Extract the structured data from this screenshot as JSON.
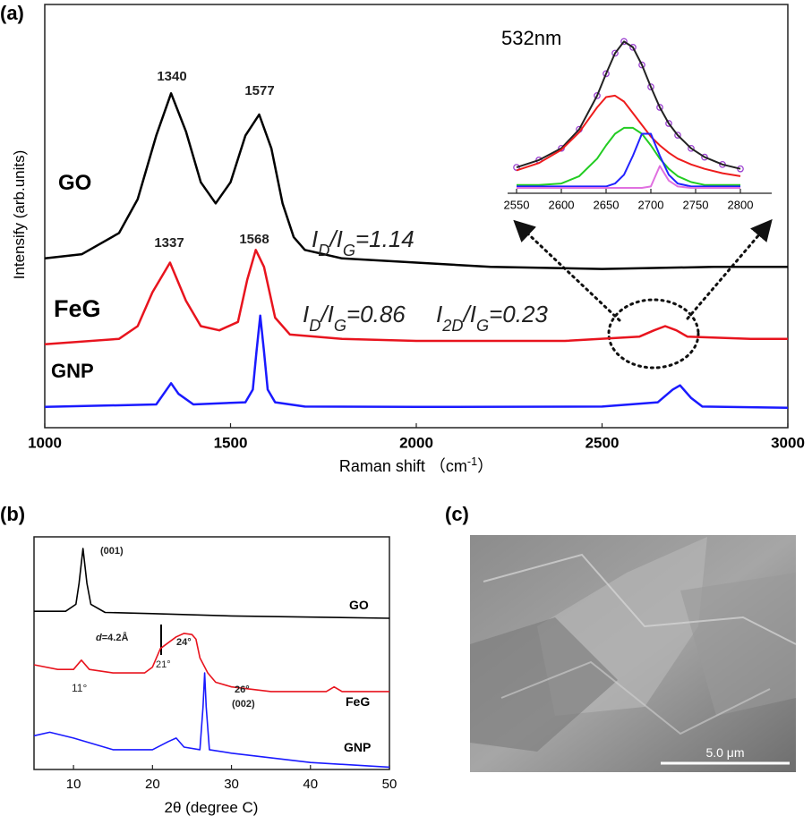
{
  "panels": [
    "(a)",
    "(b)",
    "(c)"
  ],
  "sem": {
    "scale_bar": "5.0 μm"
  },
  "chart_data": [
    {
      "type": "line",
      "y_label": "Intensify (arb.units)",
      "x_label": [
        {
          "text": "Raman shift （cm"
        },
        {
          "text": "-1",
          "sup": true
        },
        {
          "text": "）"
        }
      ],
      "xlim": [
        1000,
        3000
      ],
      "xticks": [
        1000,
        1500,
        2000,
        2500,
        3000
      ],
      "ylim": [
        0,
        10
      ],
      "series": [
        {
          "name": "GO",
          "color": "#000000",
          "x": [
            1000,
            1100,
            1200,
            1250,
            1300,
            1340,
            1380,
            1420,
            1460,
            1500,
            1540,
            1577,
            1610,
            1640,
            1670,
            1700,
            1800,
            2000,
            2200,
            2500,
            2800,
            3000
          ],
          "values": [
            4.0,
            4.1,
            4.6,
            5.4,
            6.9,
            7.9,
            7.0,
            5.8,
            5.3,
            5.8,
            6.9,
            7.4,
            6.6,
            5.3,
            4.5,
            4.2,
            4.0,
            3.9,
            3.8,
            3.75,
            3.8,
            3.8
          ]
        },
        {
          "name": "FeG",
          "color": "#e8141e",
          "x": [
            1000,
            1200,
            1250,
            1290,
            1337,
            1380,
            1420,
            1470,
            1520,
            1545,
            1568,
            1590,
            1620,
            1660,
            1800,
            2000,
            2400,
            2600,
            2640,
            2670,
            2700,
            2730,
            2900,
            3000
          ],
          "values": [
            1.97,
            2.1,
            2.4,
            3.2,
            3.9,
            3.0,
            2.4,
            2.3,
            2.5,
            3.5,
            4.2,
            3.8,
            2.6,
            2.2,
            2.1,
            2.05,
            2.05,
            2.15,
            2.3,
            2.4,
            2.3,
            2.15,
            2.1,
            2.1
          ]
        },
        {
          "name": "GNP",
          "color": "#1a1aff",
          "x": [
            1000,
            1300,
            1320,
            1340,
            1360,
            1400,
            1540,
            1560,
            1570,
            1580,
            1590,
            1600,
            1620,
            1700,
            2000,
            2500,
            2650,
            2690,
            2710,
            2740,
            2770,
            3000
          ],
          "values": [
            0.49,
            0.55,
            0.8,
            1.05,
            0.8,
            0.55,
            0.6,
            0.9,
            1.8,
            2.65,
            1.8,
            0.9,
            0.6,
            0.5,
            0.49,
            0.5,
            0.6,
            0.9,
            1.0,
            0.7,
            0.5,
            0.47
          ]
        }
      ],
      "annotations": [
        [
          {
            "text": "1340"
          }
        ],
        [
          {
            "text": "1577"
          }
        ],
        [
          {
            "text": "1337"
          }
        ],
        [
          {
            "text": "1568"
          }
        ],
        [
          {
            "text": "I"
          },
          {
            "text": "D",
            "sub": true
          },
          {
            "text": "/I"
          },
          {
            "text": "G",
            "sub": true
          },
          {
            "text": "=1.14"
          }
        ],
        [
          {
            "text": "I"
          },
          {
            "text": "D",
            "sub": true
          },
          {
            "text": "/I"
          },
          {
            "text": "G",
            "sub": true
          },
          {
            "text": "=0.86"
          }
        ],
        [
          {
            "text": "I"
          },
          {
            "text": "2D",
            "sub": true
          },
          {
            "text": "/I"
          },
          {
            "text": "G",
            "sub": true
          },
          {
            "text": "=0.23"
          }
        ]
      ]
    },
    {
      "type": "line",
      "title": "532nm",
      "xlim": [
        2540,
        2835
      ],
      "xticks": [
        2550,
        2600,
        2650,
        2700,
        2750,
        2800
      ],
      "ylim": [
        0,
        1.1
      ],
      "x": [
        2550,
        2575,
        2600,
        2620,
        2640,
        2650,
        2660,
        2670,
        2680,
        2690,
        2700,
        2710,
        2720,
        2730,
        2745,
        2760,
        2780,
        2800
      ],
      "series": [
        {
          "color": "#9b40d0",
          "marker": "circle",
          "values": [
            0.14,
            0.19,
            0.27,
            0.4,
            0.63,
            0.78,
            0.92,
            1.0,
            0.96,
            0.84,
            0.69,
            0.55,
            0.44,
            0.36,
            0.27,
            0.21,
            0.16,
            0.13
          ]
        },
        {
          "color": "#222222",
          "values": [
            0.14,
            0.19,
            0.27,
            0.4,
            0.63,
            0.78,
            0.92,
            1.0,
            0.96,
            0.84,
            0.69,
            0.55,
            0.44,
            0.36,
            0.27,
            0.21,
            0.16,
            0.13
          ]
        },
        {
          "color": "#ee1c1c",
          "values": [
            0.12,
            0.17,
            0.26,
            0.38,
            0.55,
            0.62,
            0.63,
            0.59,
            0.51,
            0.43,
            0.35,
            0.29,
            0.24,
            0.2,
            0.16,
            0.13,
            0.1,
            0.08
          ]
        },
        {
          "color": "#22cc22",
          "values": [
            0.02,
            0.02,
            0.03,
            0.08,
            0.2,
            0.29,
            0.37,
            0.41,
            0.41,
            0.37,
            0.29,
            0.2,
            0.13,
            0.08,
            0.04,
            0.02,
            0.02,
            0.02
          ]
        },
        {
          "color": "#2222ff",
          "values": [
            0.01,
            0.01,
            0.01,
            0.01,
            0.01,
            0.01,
            0.03,
            0.09,
            0.22,
            0.37,
            0.37,
            0.22,
            0.09,
            0.03,
            0.01,
            0.01,
            0.01,
            0.01
          ]
        },
        {
          "color": "#e070e0",
          "values": [
            0,
            0,
            0,
            0,
            0,
            0,
            0,
            0,
            0,
            0,
            0.01,
            0.15,
            0.05,
            0.01,
            0,
            0,
            0,
            0
          ]
        }
      ]
    },
    {
      "type": "line",
      "x_label": "2θ (degree C)",
      "xlim": [
        5,
        50
      ],
      "xticks": [
        10,
        20,
        30,
        40,
        50
      ],
      "ylim": [
        0,
        10
      ],
      "series": [
        {
          "name": "GO",
          "color": "#000000",
          "x": [
            5,
            9,
            10.3,
            10.7,
            11.2,
            11.7,
            12.2,
            14,
            20,
            30,
            40,
            50
          ],
          "values": [
            6.8,
            6.8,
            7.1,
            8.0,
            9.5,
            8.0,
            7.1,
            6.75,
            6.7,
            6.6,
            6.55,
            6.5
          ]
        },
        {
          "name": "FeG",
          "color": "#e8141e",
          "x": [
            5,
            8,
            10,
            11,
            12,
            15,
            19,
            20,
            21,
            22,
            23,
            24,
            25,
            25.5,
            26,
            27,
            28,
            30,
            35,
            42,
            43,
            44,
            50
          ],
          "values": [
            4.5,
            4.3,
            4.3,
            4.7,
            4.3,
            4.15,
            4.15,
            4.4,
            5.2,
            5.45,
            5.7,
            5.85,
            5.8,
            5.6,
            4.8,
            4.15,
            3.75,
            3.55,
            3.35,
            3.35,
            3.55,
            3.35,
            3.35
          ]
        },
        {
          "name": "GNP",
          "color": "#1a1aff",
          "x": [
            5,
            7,
            10,
            15,
            20,
            22,
            23,
            24,
            26,
            26.4,
            26.6,
            26.8,
            27.2,
            30,
            40,
            50
          ],
          "values": [
            1.45,
            1.6,
            1.35,
            0.85,
            0.85,
            1.2,
            1.35,
            0.96,
            0.85,
            2.7,
            4.15,
            2.7,
            0.85,
            0.7,
            0.3,
            0.1
          ]
        }
      ],
      "annotations": [
        [
          {
            "text": "(001)"
          }
        ],
        [
          {
            "text": "d",
            "italic": true
          },
          {
            "text": "=4.2Å"
          }
        ],
        [
          {
            "text": "24°"
          }
        ],
        [
          {
            "text": "21°"
          }
        ],
        [
          {
            "text": "11°"
          }
        ],
        [
          {
            "text": "26°"
          }
        ],
        [
          {
            "text": "(002)"
          }
        ]
      ]
    }
  ]
}
